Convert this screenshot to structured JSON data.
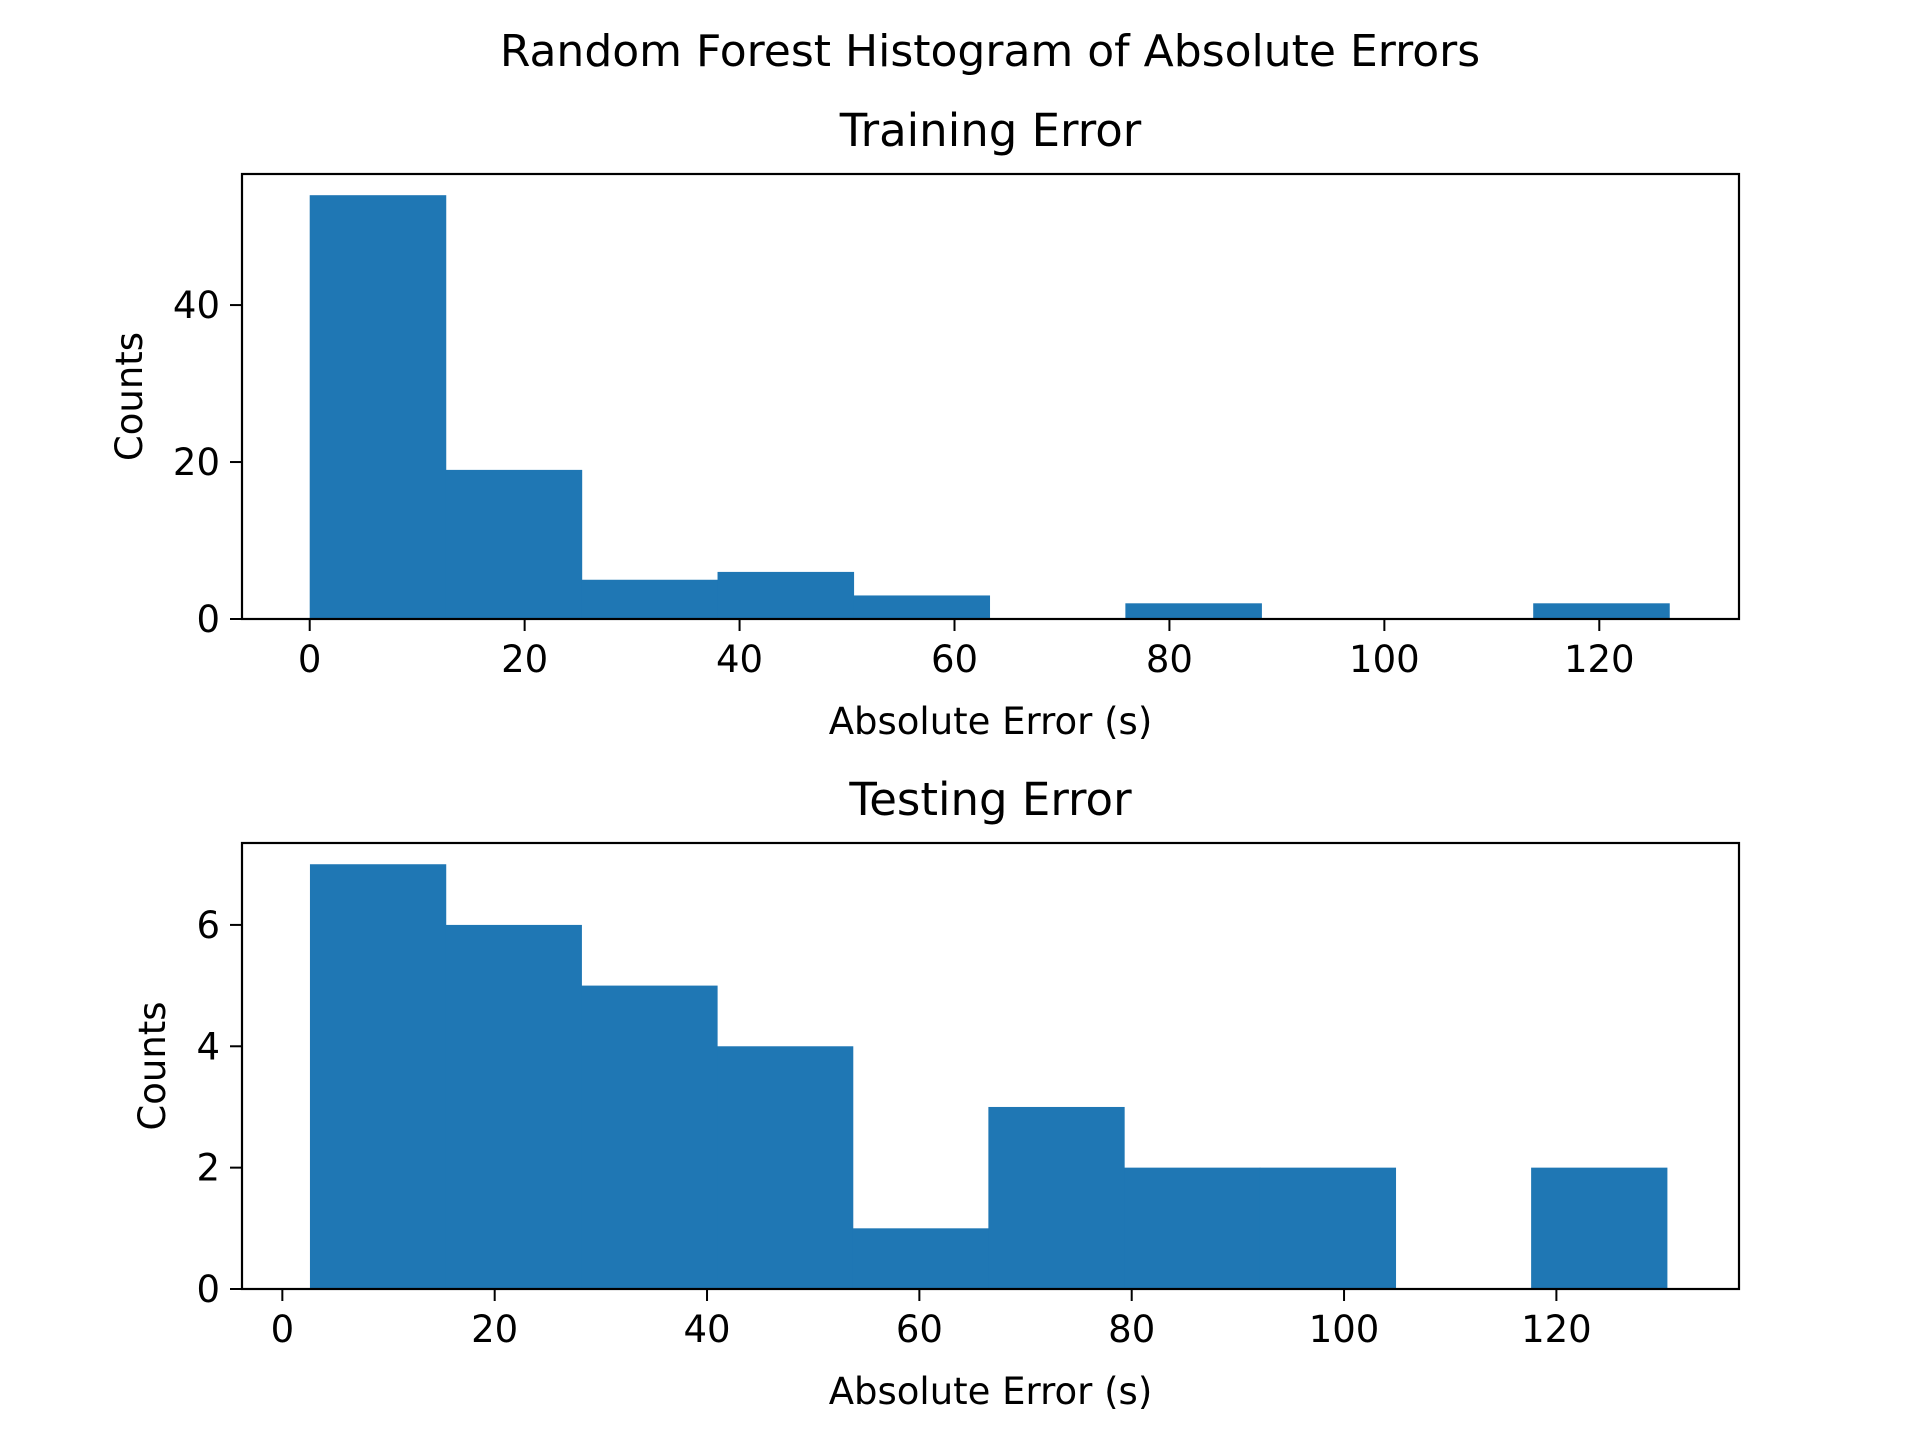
{
  "figure": {
    "suptitle": "Random Forest Histogram of Absolute Errors",
    "bar_color": "#1f77b4"
  },
  "chart_data": [
    {
      "type": "bar",
      "title": "Training Error",
      "xlabel": "Absolute Error (s)",
      "ylabel": "Counts",
      "xlim": [
        -6.3,
        133
      ],
      "ylim": [
        0,
        56.7
      ],
      "xticks": [
        0,
        20,
        40,
        60,
        80,
        100,
        120
      ],
      "yticks": [
        0,
        20,
        40
      ],
      "bin_edges": [
        0,
        12.65,
        25.3,
        37.95,
        50.6,
        63.25,
        75.9,
        88.55,
        101.2,
        113.85,
        126.5
      ],
      "values": [
        54,
        19,
        5,
        6,
        3,
        0,
        2,
        0,
        0,
        2
      ],
      "grid": false,
      "legend": "none"
    },
    {
      "type": "bar",
      "title": "Testing Error",
      "xlabel": "Absolute Error (s)",
      "ylabel": "Counts",
      "xlim": [
        -3.8,
        137.2
      ],
      "ylim": [
        0,
        7.35
      ],
      "xticks": [
        0,
        20,
        40,
        60,
        80,
        100,
        120
      ],
      "yticks": [
        0,
        2,
        4,
        6
      ],
      "bin_edges": [
        2.6,
        15.38,
        28.16,
        40.94,
        53.72,
        66.5,
        79.28,
        92.06,
        104.84,
        117.62,
        130.4
      ],
      "values": [
        7,
        6,
        5,
        4,
        1,
        3,
        2,
        2,
        0,
        2
      ],
      "grid": false,
      "legend": "none"
    }
  ]
}
